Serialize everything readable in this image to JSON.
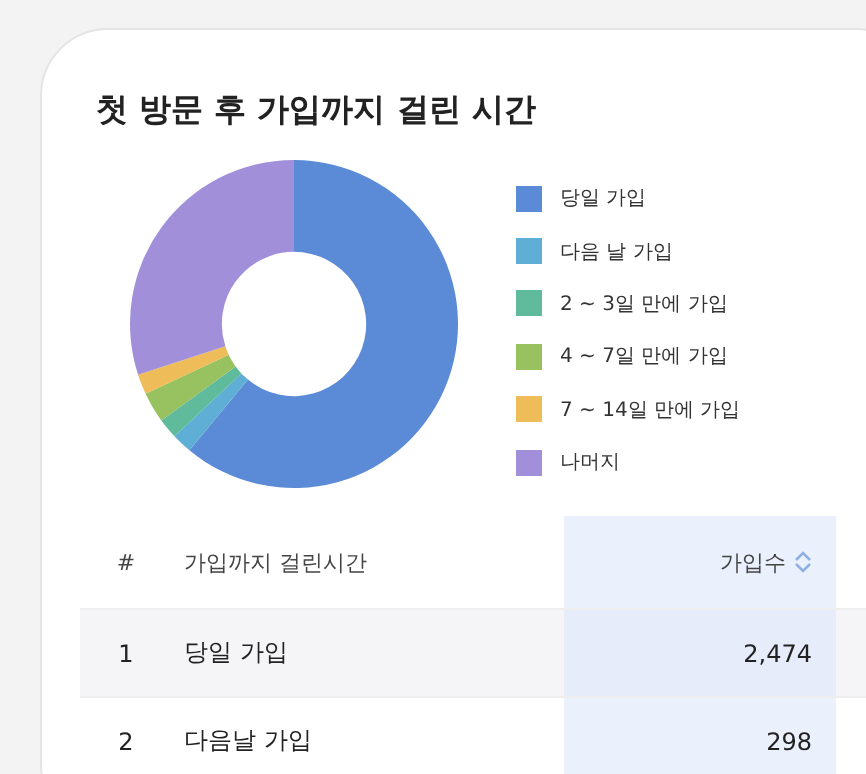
{
  "chart_data": {
    "type": "donut",
    "title": "첫 방문 후 가입까지 걸린 시간",
    "categories": [
      "당일 가입",
      "다음 날 가입",
      "2 ~ 3일 만에 가입",
      "4 ~ 7일 만에 가입",
      "7 ~ 14일 만에 가입",
      "나머지"
    ],
    "values": [
      61,
      2,
      2,
      3,
      2,
      30
    ],
    "colors": [
      "#5b8ad6",
      "#5eaed6",
      "#5fbb9b",
      "#98c160",
      "#eebd5a",
      "#a18fda"
    ],
    "legend": "right",
    "annotations": [
      "#",
      "가입까지 걸린시간",
      "가입수",
      "1",
      "당일 가입",
      "2,474",
      "2",
      "다음날 가입",
      "298"
    ]
  }
}
